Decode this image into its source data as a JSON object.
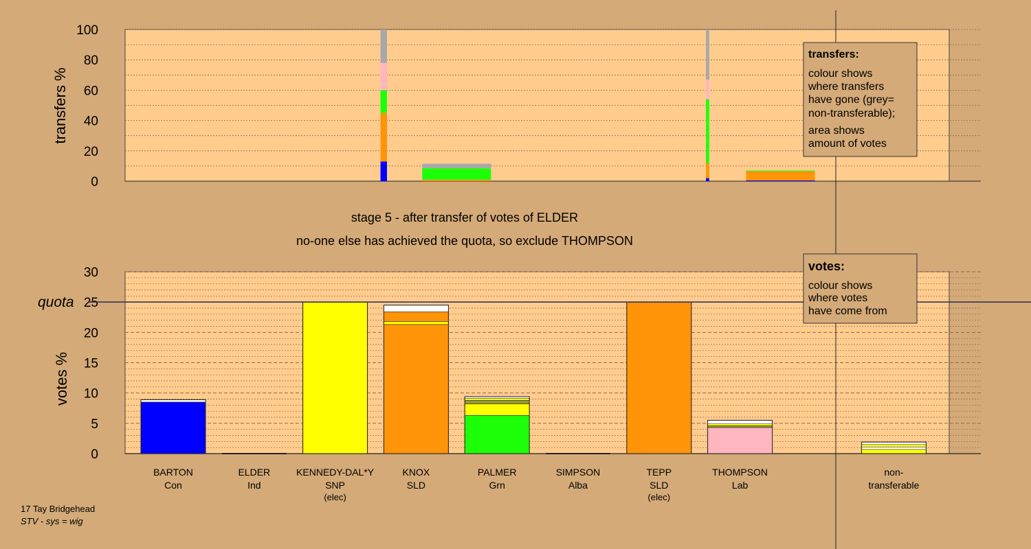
{
  "titles": {
    "stage": "stage 5 - after transfer of votes of ELDER",
    "note": "no-one else has achieved the quota, so exclude THOMPSON"
  },
  "footer": {
    "line1": "17 Tay Bridgehead",
    "line2": "STV - sys = wig"
  },
  "legend_transfers": {
    "title": "transfers:",
    "lines": [
      "colour shows",
      "where transfers",
      "have gone (grey=",
      "non-transferable);",
      "area shows",
      "amount of votes"
    ]
  },
  "legend_votes": {
    "title": "votes:",
    "lines": [
      "colour shows",
      "where votes",
      "have come from"
    ]
  },
  "colors": {
    "Con": "#0000ff",
    "SNP": "#ffff00",
    "SLD": "#ff9408",
    "Grn": "#1cff08",
    "Lab": "#ffb6c1",
    "Ind": "#9e9e9e",
    "Alba": "#004080",
    "non": "#a8a8a8",
    "olive": "#9a9a28",
    "white": "#ffffff",
    "panel": "#ffcc8e",
    "background": "#d4aa78"
  },
  "chart_data": [
    {
      "type": "bar",
      "name": "transfers",
      "ylabel": "transfers %",
      "ylim": [
        0,
        100
      ],
      "yticks": [
        0,
        20,
        40,
        60,
        80,
        100
      ],
      "bars": [
        {
          "pos": 3.6,
          "width": 0.08,
          "segments": [
            {
              "color": "Con",
              "value": 13
            },
            {
              "color": "SLD",
              "value": 32
            },
            {
              "color": "Grn",
              "value": 15
            },
            {
              "color": "Lab",
              "value": 18
            },
            {
              "color": "non",
              "value": 22
            }
          ]
        },
        {
          "pos": 4.5,
          "width": 0.85,
          "segments": [
            {
              "color": "SLD",
              "value": 1
            },
            {
              "color": "Grn",
              "value": 7.5
            },
            {
              "color": "non",
              "value": 3
            }
          ]
        },
        {
          "pos": 7.6,
          "width": 0.04,
          "segments": [
            {
              "color": "Con",
              "value": 2
            },
            {
              "color": "SLD",
              "value": 10
            },
            {
              "color": "Grn",
              "value": 42
            },
            {
              "color": "Lab",
              "value": 13
            },
            {
              "color": "non",
              "value": 33
            }
          ]
        },
        {
          "pos": 8.5,
          "width": 0.85,
          "segments": [
            {
              "color": "Con",
              "value": 0.5
            },
            {
              "color": "SLD",
              "value": 6
            },
            {
              "color": "Grn",
              "value": 0.5
            }
          ]
        }
      ]
    },
    {
      "type": "bar",
      "name": "votes",
      "ylabel": "votes %",
      "ylim": [
        0,
        30
      ],
      "yticks": [
        0,
        5,
        10,
        15,
        20,
        25,
        30
      ],
      "quota": 25,
      "quota_label": "quota",
      "categories": [
        {
          "name": "BARTON",
          "party": "Con",
          "elec": "",
          "x": 1,
          "segments": [
            {
              "color": "Con",
              "value": 8.5
            },
            {
              "color": "white",
              "value": 0.4
            }
          ]
        },
        {
          "name": "ELDER",
          "party": "Ind",
          "elec": "",
          "x": 2,
          "segments": []
        },
        {
          "name": "KENNEDY-DAL*Y",
          "party": "SNP",
          "elec": "(elec)",
          "x": 3,
          "segments": [
            {
              "color": "SNP",
              "value": 25
            }
          ]
        },
        {
          "name": "KNOX",
          "party": "SLD",
          "elec": "",
          "x": 4,
          "segments": [
            {
              "color": "SLD",
              "value": 21.3
            },
            {
              "color": "SNP",
              "value": 0.5
            },
            {
              "color": "SLD",
              "value": 1.6
            },
            {
              "color": "white",
              "value": 1.1
            }
          ]
        },
        {
          "name": "PALMER",
          "party": "Grn",
          "elec": "",
          "x": 5,
          "segments": [
            {
              "color": "Grn",
              "value": 6.3
            },
            {
              "color": "SNP",
              "value": 1.9
            },
            {
              "color": "olive",
              "value": 0.6
            },
            {
              "color": "SNP",
              "value": 0.3
            },
            {
              "color": "white",
              "value": 0.3
            }
          ]
        },
        {
          "name": "SIMPSON",
          "party": "Alba",
          "elec": "",
          "x": 6,
          "segments": []
        },
        {
          "name": "TEPP",
          "party": "SLD",
          "elec": "(elec)",
          "x": 7,
          "segments": [
            {
              "color": "SLD",
              "value": 25
            }
          ]
        },
        {
          "name": "THOMPSON",
          "party": "Lab",
          "elec": "",
          "x": 8,
          "segments": [
            {
              "color": "Lab",
              "value": 4.3
            },
            {
              "color": "olive",
              "value": 0.3
            },
            {
              "color": "SNP",
              "value": 0.3
            },
            {
              "color": "white",
              "value": 0.6
            }
          ]
        },
        {
          "name": "non-",
          "party": "transferable",
          "elec": "",
          "x": 9.9,
          "segments": [
            {
              "color": "SNP",
              "value": 0.7
            },
            {
              "color": "white",
              "value": 0.4
            },
            {
              "color": "SNP",
              "value": 0.4
            },
            {
              "color": "white",
              "value": 0.4
            }
          ]
        }
      ]
    }
  ]
}
